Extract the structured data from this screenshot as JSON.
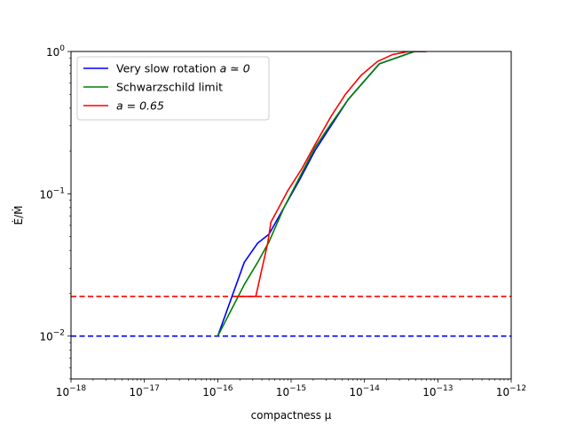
{
  "chart_data": {
    "type": "line",
    "xscale": "log",
    "yscale": "log",
    "xlim": [
      1e-18,
      1e-12
    ],
    "ylim": [
      0.005,
      1
    ],
    "xlabel": "compactness μ",
    "ylabel": "Ė/Ṁ",
    "x_ticks": [
      {
        "value": 1e-18,
        "base": "10",
        "exp": "−18"
      },
      {
        "value": 1e-17,
        "base": "10",
        "exp": "−17"
      },
      {
        "value": 1e-16,
        "base": "10",
        "exp": "−16"
      },
      {
        "value": 1e-15,
        "base": "10",
        "exp": "−15"
      },
      {
        "value": 1e-14,
        "base": "10",
        "exp": "−14"
      },
      {
        "value": 1e-13,
        "base": "10",
        "exp": "−13"
      },
      {
        "value": 1e-12,
        "base": "10",
        "exp": "−12"
      }
    ],
    "y_ticks": [
      {
        "value": 0.01,
        "base": "10",
        "exp": "−2"
      },
      {
        "value": 0.1,
        "base": "10",
        "exp": "−1"
      },
      {
        "value": 1,
        "base": "10",
        "exp": "0"
      }
    ],
    "grid": false,
    "legend_position": "top-left",
    "series": [
      {
        "name": "Very slow rotation a ≃ 0",
        "legend_main": "Very slow rotation ",
        "legend_math": "a ≃ 0",
        "color": "#0000ff",
        "x": [
          1e-16,
          2.3e-16,
          3.5e-16,
          5e-16,
          8e-16,
          1.3e-15,
          2.1e-15,
          3.2e-15,
          6e-15,
          1.6e-14,
          4.8e-14,
          7e-14
        ],
        "y": [
          0.01,
          0.033,
          0.045,
          0.052,
          0.08,
          0.125,
          0.2,
          0.28,
          0.46,
          0.82,
          1.0,
          1.0
        ]
      },
      {
        "name": "Schwarzschild limit",
        "legend_main": "Schwarzschild limit",
        "legend_math": "",
        "color": "#008000",
        "x": [
          1e-16,
          2.3e-16,
          3.5e-16,
          5e-16,
          8e-16,
          1.3e-15,
          2.1e-15,
          3.2e-15,
          6e-15,
          1.6e-14,
          4.8e-14,
          7e-14
        ],
        "y": [
          0.01,
          0.023,
          0.033,
          0.046,
          0.08,
          0.13,
          0.21,
          0.29,
          0.46,
          0.82,
          1.0,
          1.0
        ]
      },
      {
        "name": "a = 0.65",
        "legend_main": "",
        "legend_math": "a = 0.65",
        "color": "#ff0000",
        "x": [
          1.7e-16,
          3.3e-16,
          4.8e-16,
          5.3e-16,
          9e-16,
          1.4e-15,
          2.1e-15,
          3.5e-15,
          5.5e-15,
          9e-15,
          1.5e-14,
          2.4e-14,
          4e-14,
          7e-14
        ],
        "y": [
          0.019,
          0.019,
          0.045,
          0.063,
          0.105,
          0.15,
          0.22,
          0.35,
          0.5,
          0.68,
          0.85,
          0.95,
          1.0,
          1.0
        ]
      }
    ],
    "reference_lines": [
      {
        "y": 0.01,
        "color": "#0000ff",
        "style": "dashed"
      },
      {
        "y": 0.019,
        "color": "#ff0000",
        "style": "dashed"
      }
    ]
  }
}
